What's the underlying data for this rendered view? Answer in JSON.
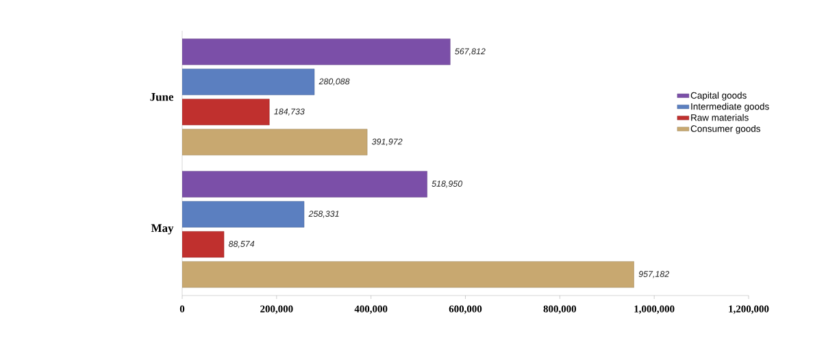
{
  "chart_data": {
    "type": "bar",
    "orientation": "horizontal",
    "categories": [
      "June",
      "May"
    ],
    "series": [
      {
        "name": "Capital goods",
        "color": "#7b4fa8",
        "values": [
          567812,
          518950
        ],
        "value_labels": [
          "567,812",
          "518,950"
        ]
      },
      {
        "name": "Intermediate goods",
        "color": "#5b7fc0",
        "values": [
          280088,
          258331
        ],
        "value_labels": [
          "280,088",
          "258,331"
        ]
      },
      {
        "name": "Raw materials",
        "color": "#c0302e",
        "values": [
          184733,
          88574
        ],
        "value_labels": [
          "184,733",
          "88,574"
        ]
      },
      {
        "name": "Consumer goods",
        "color": "#c8a870",
        "values": [
          391972,
          957182
        ],
        "value_labels": [
          "391,972",
          "957,182"
        ]
      }
    ],
    "xlim": [
      0,
      1200000
    ],
    "xticks": [
      0,
      {
        "value": 200000,
        "label": "200,000"
      },
      {
        "value": 400000,
        "label": "400,000"
      },
      {
        "value": 600000,
        "label": "600,000"
      },
      {
        "value": 800000,
        "label": "800,000"
      },
      {
        "value": 1000000,
        "label": "1,000,000"
      },
      {
        "value": 1200000,
        "label": "1,200,000"
      }
    ],
    "legend": "right"
  }
}
